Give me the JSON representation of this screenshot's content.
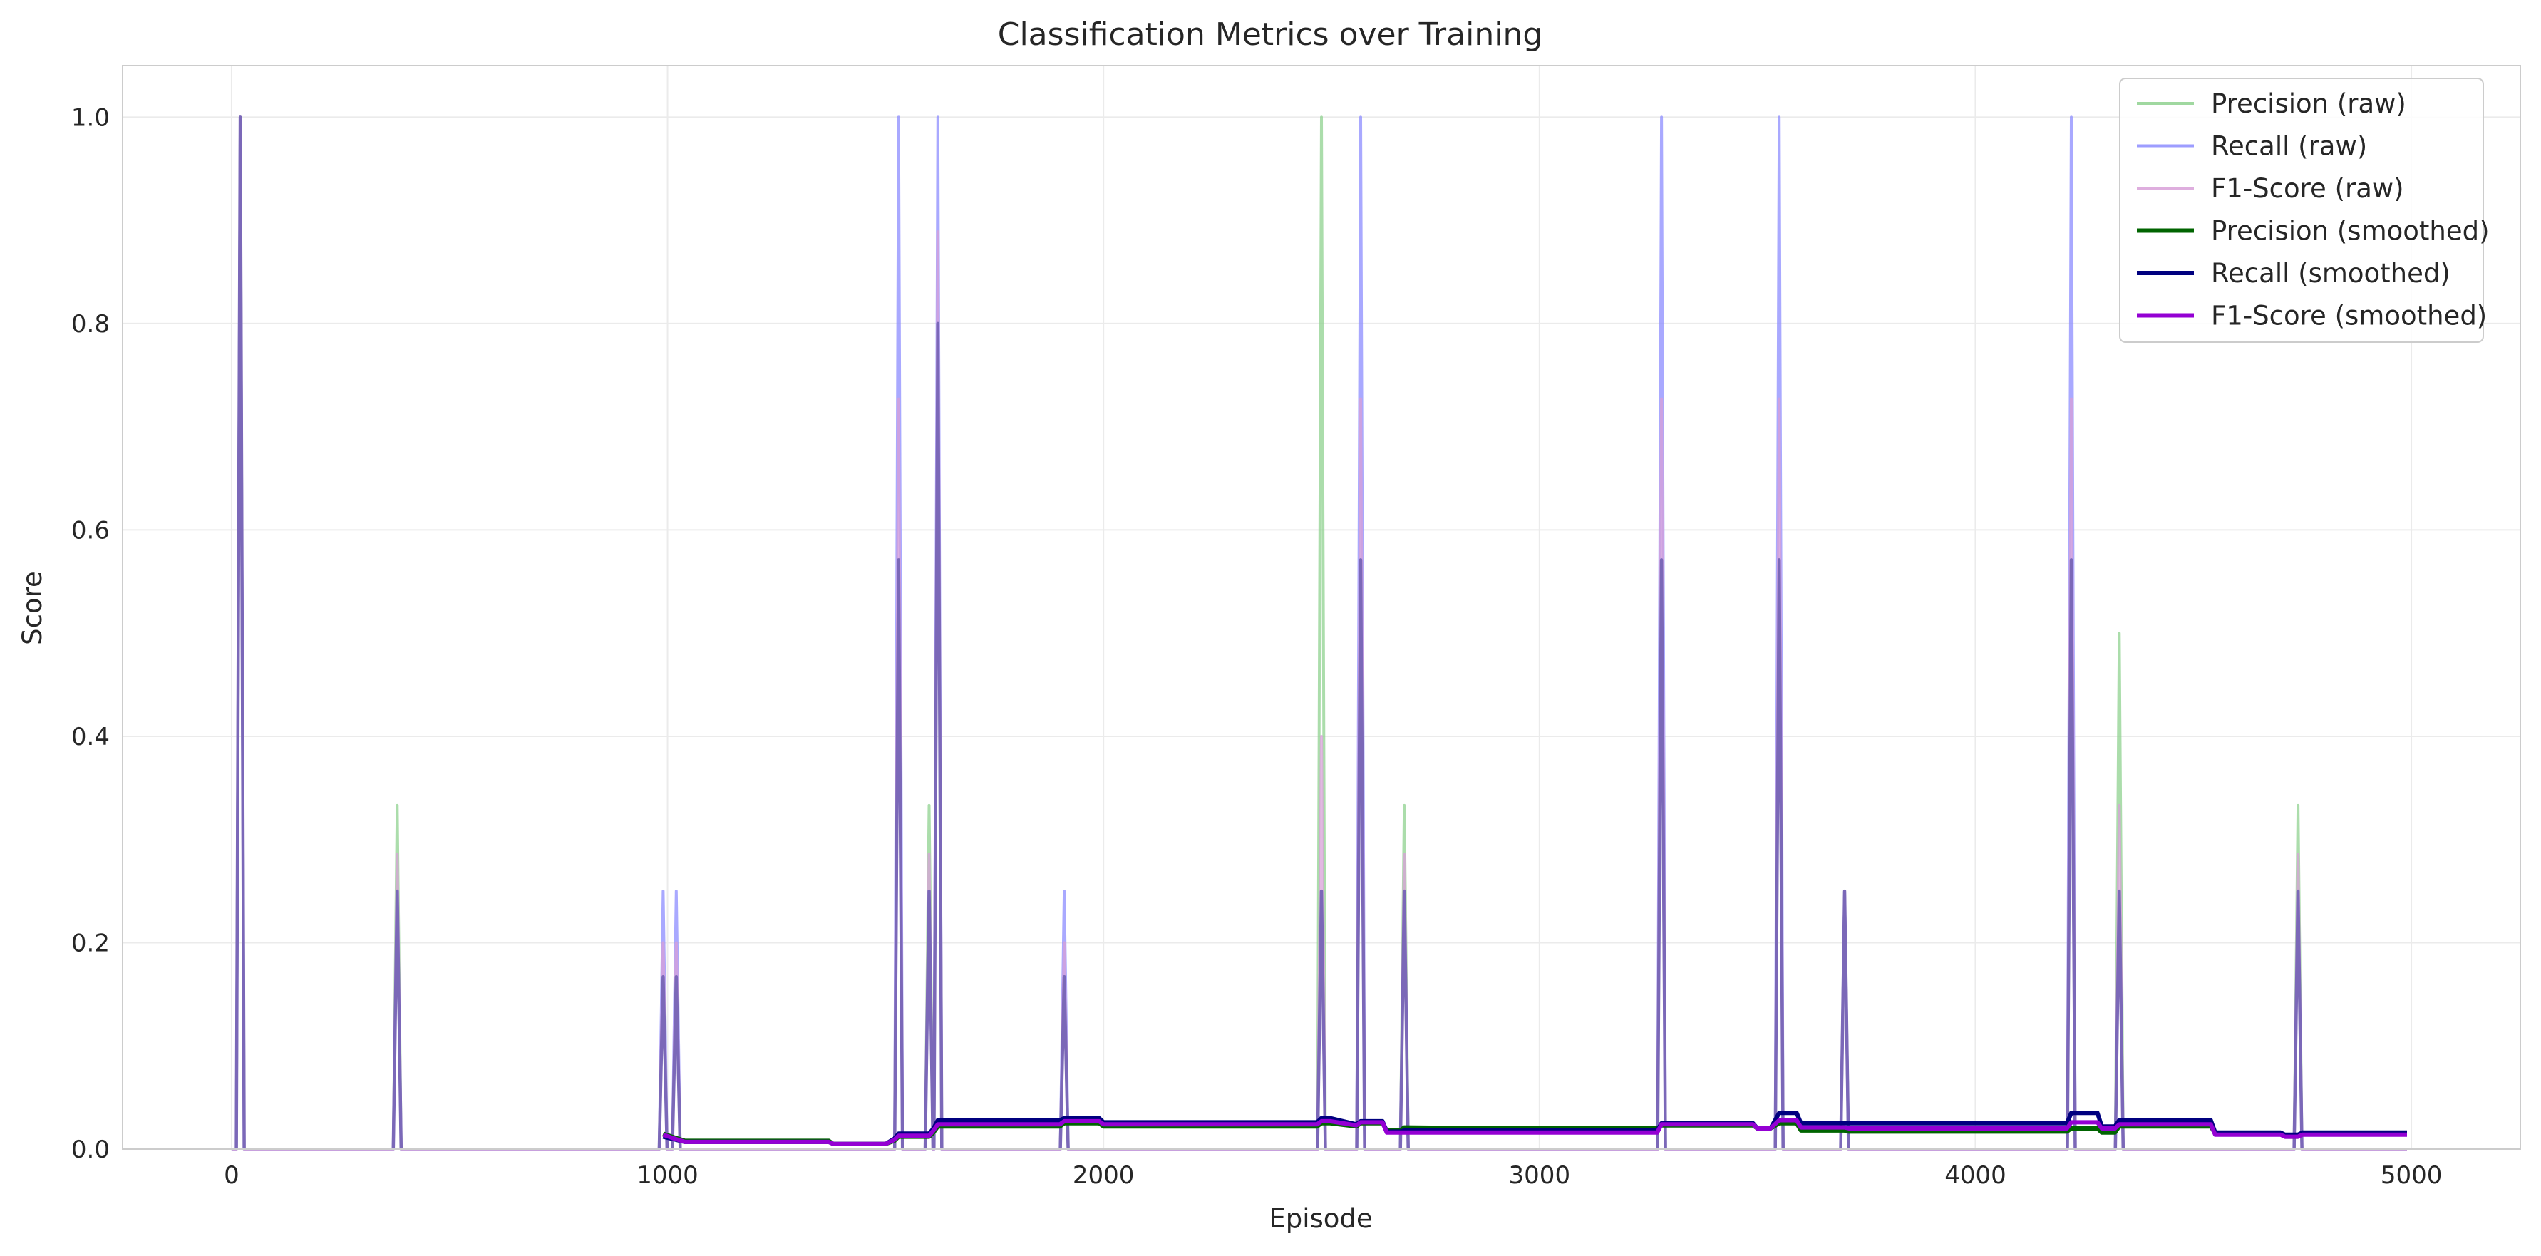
{
  "chart_data": {
    "type": "line",
    "title": "Classification Metrics over Training",
    "xlabel": "Episode",
    "ylabel": "Score",
    "xlim": [
      -250,
      5250
    ],
    "ylim": [
      0,
      1.05
    ],
    "xticks": [
      0,
      1000,
      2000,
      3000,
      4000,
      5000
    ],
    "yticks": [
      0.0,
      0.2,
      0.4,
      0.6,
      0.8,
      1.0
    ],
    "xtick_labels": [
      "0",
      "1000",
      "2000",
      "3000",
      "4000",
      "5000"
    ],
    "ytick_labels": [
      "0.0",
      "0.2",
      "0.4",
      "0.6",
      "0.8",
      "1.0"
    ],
    "grid": true,
    "legend_position": "top-right",
    "colors": {
      "precision_raw": "#8fd18f",
      "recall_raw": "#8c8cff",
      "f1_raw": "#d8a0d8",
      "precision_smoothed": "#006400",
      "recall_smoothed": "#00007f",
      "f1_smoothed": "#9400d3",
      "overlap": "#7b68b8"
    },
    "spikes": [
      {
        "x": 20,
        "precision": 1.0,
        "recall": 1.0,
        "f1": 1.0
      },
      {
        "x": 380,
        "precision": 0.333,
        "recall": 0.25,
        "f1": 0.286
      },
      {
        "x": 990,
        "precision": 0.167,
        "recall": 0.25,
        "f1": 0.2
      },
      {
        "x": 1020,
        "precision": 0.167,
        "recall": 0.25,
        "f1": 0.2
      },
      {
        "x": 1530,
        "precision": 0.571,
        "recall": 1.0,
        "f1": 0.727
      },
      {
        "x": 1600,
        "precision": 0.333,
        "recall": 0.25,
        "f1": 0.286
      },
      {
        "x": 1620,
        "precision": 0.8,
        "recall": 1.0,
        "f1": 0.889
      },
      {
        "x": 1910,
        "precision": 0.167,
        "recall": 0.25,
        "f1": 0.2
      },
      {
        "x": 2500,
        "precision": 1.0,
        "recall": 0.25,
        "f1": 0.4
      },
      {
        "x": 2590,
        "precision": 0.571,
        "recall": 1.0,
        "f1": 0.727
      },
      {
        "x": 2690,
        "precision": 0.333,
        "recall": 0.25,
        "f1": 0.286
      },
      {
        "x": 3280,
        "precision": 0.571,
        "recall": 1.0,
        "f1": 0.727
      },
      {
        "x": 3550,
        "precision": 0.571,
        "recall": 1.0,
        "f1": 0.727
      },
      {
        "x": 3700,
        "precision": 0.25,
        "recall": 0.25,
        "f1": 0.25
      },
      {
        "x": 4220,
        "precision": 0.571,
        "recall": 1.0,
        "f1": 0.727
      },
      {
        "x": 4330,
        "precision": 0.5,
        "recall": 0.25,
        "f1": 0.333
      },
      {
        "x": 4740,
        "precision": 0.333,
        "recall": 0.25,
        "f1": 0.286
      }
    ],
    "series": [
      {
        "name": "Precision (smoothed)",
        "x": [
          990,
          1010,
          1040,
          1370,
          1380,
          1500,
          1520,
          1530,
          1600,
          1610,
          1620,
          1900,
          1910,
          1990,
          2000,
          2490,
          2500,
          2520,
          2580,
          2590,
          2640,
          2650,
          2680,
          2690,
          2900,
          3270,
          3280,
          3490,
          3500,
          3530,
          3550,
          3590,
          3600,
          3700,
          3710,
          4210,
          4220,
          4280,
          4290,
          4320,
          4330,
          4540,
          4550,
          4700,
          4710,
          4740,
          4750,
          4990
        ],
        "y": [
          0.015,
          0.012,
          0.008,
          0.008,
          0.005,
          0.005,
          0.008,
          0.012,
          0.012,
          0.016,
          0.022,
          0.022,
          0.025,
          0.025,
          0.022,
          0.022,
          0.025,
          0.025,
          0.022,
          0.025,
          0.025,
          0.018,
          0.018,
          0.021,
          0.02,
          0.02,
          0.023,
          0.023,
          0.02,
          0.02,
          0.025,
          0.025,
          0.018,
          0.018,
          0.017,
          0.017,
          0.02,
          0.02,
          0.016,
          0.016,
          0.022,
          0.022,
          0.015,
          0.015,
          0.012,
          0.012,
          0.015,
          0.015
        ]
      },
      {
        "name": "Recall (smoothed)",
        "x": [
          990,
          1010,
          1040,
          1370,
          1380,
          1500,
          1520,
          1530,
          1600,
          1610,
          1620,
          1900,
          1910,
          1990,
          2000,
          2490,
          2500,
          2520,
          2580,
          2590,
          2640,
          2650,
          2680,
          2690,
          2900,
          3270,
          3280,
          3490,
          3500,
          3530,
          3550,
          3590,
          3600,
          3700,
          3710,
          4210,
          4220,
          4280,
          4290,
          4320,
          4330,
          4540,
          4550,
          4700,
          4710,
          4740,
          4750,
          4990
        ],
        "y": [
          0.012,
          0.01,
          0.007,
          0.007,
          0.005,
          0.005,
          0.01,
          0.015,
          0.015,
          0.02,
          0.028,
          0.028,
          0.03,
          0.03,
          0.026,
          0.026,
          0.03,
          0.03,
          0.024,
          0.027,
          0.027,
          0.017,
          0.017,
          0.018,
          0.018,
          0.018,
          0.025,
          0.025,
          0.02,
          0.02,
          0.035,
          0.035,
          0.025,
          0.025,
          0.025,
          0.025,
          0.035,
          0.035,
          0.022,
          0.022,
          0.028,
          0.028,
          0.016,
          0.016,
          0.014,
          0.014,
          0.016,
          0.016
        ]
      },
      {
        "name": "F1-Score (smoothed)",
        "x": [
          990,
          1010,
          1040,
          1370,
          1380,
          1500,
          1520,
          1530,
          1600,
          1610,
          1620,
          1900,
          1910,
          1990,
          2000,
          2490,
          2500,
          2520,
          2580,
          2590,
          2640,
          2650,
          2680,
          2690,
          2900,
          3270,
          3280,
          3490,
          3500,
          3530,
          3550,
          3590,
          3600,
          3700,
          3710,
          4210,
          4220,
          4280,
          4290,
          4320,
          4330,
          4540,
          4550,
          4700,
          4710,
          4740,
          4750,
          4990
        ],
        "y": [
          0.014,
          0.011,
          0.007,
          0.007,
          0.005,
          0.005,
          0.009,
          0.013,
          0.013,
          0.018,
          0.024,
          0.024,
          0.027,
          0.027,
          0.024,
          0.024,
          0.027,
          0.027,
          0.023,
          0.026,
          0.026,
          0.016,
          0.016,
          0.016,
          0.016,
          0.016,
          0.024,
          0.024,
          0.02,
          0.02,
          0.028,
          0.028,
          0.021,
          0.021,
          0.02,
          0.02,
          0.026,
          0.026,
          0.02,
          0.02,
          0.024,
          0.024,
          0.014,
          0.014,
          0.012,
          0.012,
          0.014,
          0.014
        ]
      }
    ],
    "legend": [
      {
        "label": "Precision (raw)",
        "color_key": "precision_raw"
      },
      {
        "label": "Recall (raw)",
        "color_key": "recall_raw"
      },
      {
        "label": "F1-Score (raw)",
        "color_key": "f1_raw"
      },
      {
        "label": "Precision (smoothed)",
        "color_key": "precision_smoothed"
      },
      {
        "label": "Recall (smoothed)",
        "color_key": "recall_smoothed"
      },
      {
        "label": "F1-Score (smoothed)",
        "color_key": "f1_smoothed"
      }
    ]
  }
}
